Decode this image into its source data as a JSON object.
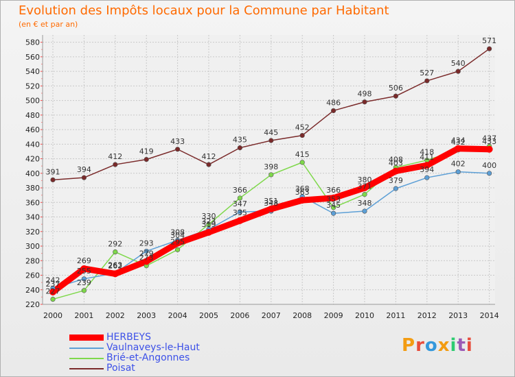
{
  "title": "Evolution des Impôts locaux pour la Commune par Habitant",
  "subtitle": "(en € et par an)",
  "logo": {
    "text": "Proxiti",
    "colors": [
      "#f39c12",
      "#e74c3c",
      "#3498db",
      "#f39c12",
      "#2ecc71",
      "#9b59b6",
      "#e74c3c"
    ]
  },
  "chart_data": {
    "type": "line",
    "title": "Evolution des Impôts locaux pour la Commune par Habitant",
    "subtitle": "(en € et par an)",
    "x": [
      2000,
      2001,
      2002,
      2003,
      2004,
      2005,
      2006,
      2007,
      2008,
      2009,
      2010,
      2011,
      2012,
      2013,
      2014
    ],
    "ylim": [
      220,
      590
    ],
    "yticks": [
      220,
      240,
      260,
      280,
      300,
      320,
      340,
      360,
      380,
      400,
      420,
      440,
      460,
      480,
      500,
      520,
      540,
      560,
      580
    ],
    "grid": true,
    "legend_position": "bottom-left",
    "series": [
      {
        "name": "HERBEYS",
        "color": "#ff0000",
        "values": [
          237,
          269,
          262,
          279,
          304,
          319,
          335,
          351,
          363,
          366,
          380,
          403,
          411,
          434,
          433
        ]
      },
      {
        "name": "Vaulnaveys-le-Haut",
        "color": "#5c9fd6",
        "values": [
          242,
          255,
          263,
          293,
          308,
          323,
          347,
          348,
          368,
          345,
          348,
          379,
          394,
          402,
          400
        ]
      },
      {
        "name": "Brié-et-Angonnes",
        "color": "#7ed84a",
        "values": [
          227,
          239,
          292,
          273,
          295,
          330,
          366,
          398,
          415,
          353,
          371,
          408,
          418,
          432,
          437
        ]
      },
      {
        "name": "Poisat",
        "color": "#7a2a2a",
        "values": [
          391,
          394,
          412,
          419,
          433,
          412,
          435,
          445,
          452,
          486,
          498,
          506,
          527,
          540,
          571
        ]
      }
    ]
  }
}
